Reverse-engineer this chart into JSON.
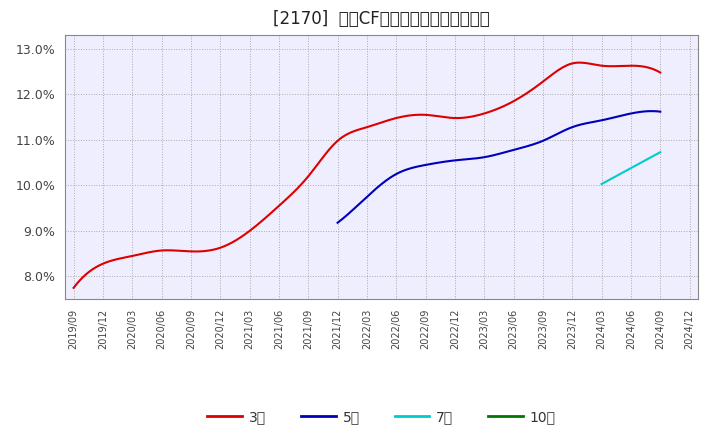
{
  "title": "[2170]  営業CFマージンの平均値の推移",
  "title_fontsize": 12,
  "background_color": "#ffffff",
  "plot_bg_color": "#eeeeff",
  "grid_color": "#aaaaaa",
  "ylim": [
    0.075,
    0.133
  ],
  "yticks": [
    0.08,
    0.09,
    0.1,
    0.11,
    0.12,
    0.13
  ],
  "series": {
    "3年": {
      "color": "#dd0000",
      "dates": [
        "2019/09",
        "2019/12",
        "2020/03",
        "2020/06",
        "2020/09",
        "2020/12",
        "2021/03",
        "2021/06",
        "2021/09",
        "2021/12",
        "2022/03",
        "2022/06",
        "2022/09",
        "2022/12",
        "2023/03",
        "2023/06",
        "2023/09",
        "2023/12",
        "2024/03",
        "2024/06",
        "2024/09"
      ],
      "values": [
        0.0775,
        0.0828,
        0.0845,
        0.0857,
        0.0855,
        0.0863,
        0.09,
        0.0955,
        0.102,
        0.1098,
        0.1128,
        0.1148,
        0.1155,
        0.1148,
        0.1158,
        0.1185,
        0.1228,
        0.1268,
        0.1263,
        0.1263,
        0.1248
      ]
    },
    "5年": {
      "color": "#0000bb",
      "dates": [
        "2021/12",
        "2022/03",
        "2022/06",
        "2022/09",
        "2022/12",
        "2023/03",
        "2023/06",
        "2023/09",
        "2023/12",
        "2024/03",
        "2024/06",
        "2024/09"
      ],
      "values": [
        0.0918,
        0.0975,
        0.1025,
        0.1045,
        0.1055,
        0.1062,
        0.1078,
        0.1098,
        0.1128,
        0.1143,
        0.1158,
        0.1162
      ]
    },
    "7年": {
      "color": "#00cccc",
      "dates": [
        "2024/03",
        "2024/06",
        "2024/09"
      ],
      "values": [
        0.1003,
        0.1038,
        0.1073
      ]
    },
    "10年": {
      "color": "#007700",
      "dates": [],
      "values": []
    }
  },
  "xtick_labels": [
    "2019/09",
    "2019/12",
    "2020/03",
    "2020/06",
    "2020/09",
    "2020/12",
    "2021/03",
    "2021/06",
    "2021/09",
    "2021/12",
    "2022/03",
    "2022/06",
    "2022/09",
    "2022/12",
    "2023/03",
    "2023/06",
    "2023/09",
    "2023/12",
    "2024/03",
    "2024/06",
    "2024/09",
    "2024/12"
  ],
  "legend_labels": [
    "3年",
    "5年",
    "7年",
    "10年"
  ],
  "legend_colors": [
    "#dd0000",
    "#0000bb",
    "#00cccc",
    "#007700"
  ]
}
